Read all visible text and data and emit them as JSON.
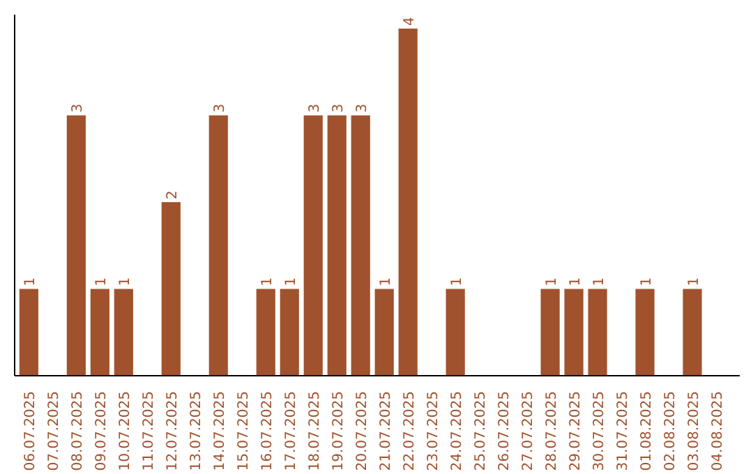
{
  "chart_data": {
    "type": "bar",
    "color": "#a0522d",
    "categories": [
      "06.07.2025",
      "07.07.2025",
      "08.07.2025",
      "09.07.2025",
      "10.07.2025",
      "11.07.2025",
      "12.07.2025",
      "13.07.2025",
      "14.07.2025",
      "15.07.2025",
      "16.07.2025",
      "17.07.2025",
      "18.07.2025",
      "19.07.2025",
      "20.07.2025",
      "21.07.2025",
      "22.07.2025",
      "23.07.2025",
      "24.07.2025",
      "25.07.2025",
      "26.07.2025",
      "27.07.2025",
      "28.07.2025",
      "29.07.2025",
      "30.07.2025",
      "31.07.2025",
      "01.08.2025",
      "02.08.2025",
      "03.08.2025",
      "04.08.2025"
    ],
    "values": [
      1,
      0,
      3,
      1,
      1,
      0,
      2,
      0,
      3,
      0,
      1,
      1,
      3,
      3,
      3,
      1,
      4,
      0,
      1,
      0,
      0,
      0,
      1,
      1,
      1,
      0,
      1,
      0,
      1,
      0
    ],
    "value_labels": [
      "1",
      null,
      "3",
      "1",
      "1",
      null,
      "2",
      null,
      "3",
      null,
      "1",
      "1",
      "3",
      "3",
      "3",
      "1",
      "4",
      null,
      "1",
      null,
      null,
      null,
      "1",
      "1",
      "1",
      null,
      "1",
      null,
      "1",
      null
    ],
    "grid": false
  }
}
